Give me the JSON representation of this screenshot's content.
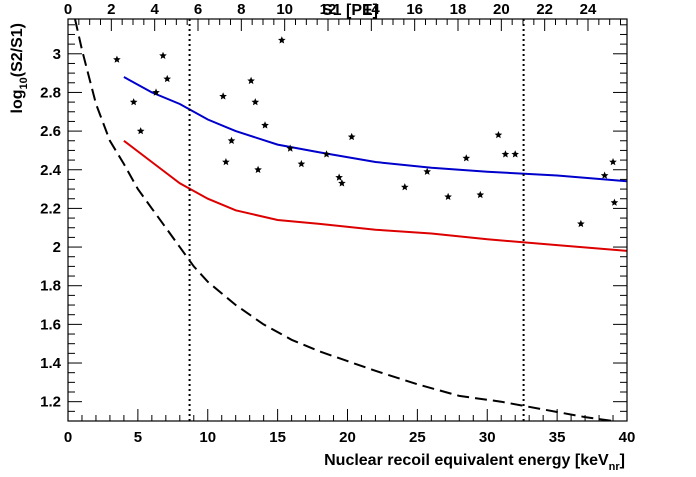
{
  "chart_data": {
    "type": "scatter",
    "x_bottom": {
      "label_main": "Nuclear recoil equivalent energy [keV",
      "label_sub": "nr",
      "label_end": "]",
      "range": [
        0,
        40
      ],
      "ticks": [
        0,
        5,
        10,
        15,
        20,
        25,
        30,
        35,
        40
      ]
    },
    "x_top": {
      "label": "S1 [PE]",
      "range": [
        0,
        25.8
      ],
      "ticks": [
        0,
        2,
        4,
        6,
        8,
        10,
        12,
        14,
        16,
        18,
        20,
        22,
        24
      ]
    },
    "y": {
      "label_pre": "log",
      "label_sub": "10",
      "label_post": "(S2/S1)",
      "range": [
        1.1,
        3.18
      ],
      "ticks": [
        1.2,
        1.4,
        1.6,
        1.8,
        2,
        2.2,
        2.4,
        2.6,
        2.8,
        3
      ]
    },
    "events": [
      [
        3.5,
        2.97
      ],
      [
        4.7,
        2.75
      ],
      [
        5.2,
        2.6
      ],
      [
        6.3,
        2.8
      ],
      [
        6.8,
        2.99
      ],
      [
        7.1,
        2.87
      ],
      [
        11.1,
        2.78
      ],
      [
        11.3,
        2.44
      ],
      [
        11.7,
        2.55
      ],
      [
        13.1,
        2.86
      ],
      [
        13.4,
        2.75
      ],
      [
        13.6,
        2.4
      ],
      [
        14.1,
        2.63
      ],
      [
        15.3,
        3.07
      ],
      [
        15.9,
        2.51
      ],
      [
        16.7,
        2.43
      ],
      [
        18.5,
        2.48
      ],
      [
        19.4,
        2.36
      ],
      [
        19.6,
        2.33
      ],
      [
        20.3,
        2.57
      ],
      [
        24.1,
        2.31
      ],
      [
        25.7,
        2.39
      ],
      [
        27.2,
        2.26
      ],
      [
        28.5,
        2.46
      ],
      [
        29.5,
        2.27
      ],
      [
        30.8,
        2.58
      ],
      [
        31.3,
        2.48
      ],
      [
        32.0,
        2.48
      ],
      [
        36.7,
        2.12
      ],
      [
        38.4,
        2.37
      ],
      [
        39.0,
        2.44
      ],
      [
        39.1,
        2.23
      ]
    ],
    "curves": [
      {
        "color": "#0000cc",
        "style": "solid",
        "points": [
          [
            4.0,
            2.88
          ],
          [
            6.0,
            2.8
          ],
          [
            8.0,
            2.74
          ],
          [
            10.0,
            2.66
          ],
          [
            12.0,
            2.6
          ],
          [
            15.0,
            2.53
          ],
          [
            18.0,
            2.49
          ],
          [
            22.0,
            2.44
          ],
          [
            26.0,
            2.41
          ],
          [
            30.0,
            2.39
          ],
          [
            35.0,
            2.37
          ],
          [
            40.0,
            2.34
          ]
        ]
      },
      {
        "color": "#dd0000",
        "style": "solid",
        "points": [
          [
            4.0,
            2.55
          ],
          [
            6.0,
            2.44
          ],
          [
            8.0,
            2.33
          ],
          [
            10.0,
            2.25
          ],
          [
            12.0,
            2.19
          ],
          [
            15.0,
            2.14
          ],
          [
            18.0,
            2.12
          ],
          [
            22.0,
            2.09
          ],
          [
            26.0,
            2.07
          ],
          [
            30.0,
            2.04
          ],
          [
            35.0,
            2.01
          ],
          [
            40.0,
            1.98
          ]
        ]
      },
      {
        "color": "#000000",
        "style": "dashed",
        "points": [
          [
            0.5,
            3.18
          ],
          [
            1.0,
            3.02
          ],
          [
            1.5,
            2.88
          ],
          [
            2.0,
            2.74
          ],
          [
            3.0,
            2.55
          ],
          [
            4.0,
            2.43
          ],
          [
            5.0,
            2.3
          ],
          [
            6.0,
            2.2
          ],
          [
            7.0,
            2.1
          ],
          [
            8.0,
            2.0
          ],
          [
            9.0,
            1.9
          ],
          [
            10.0,
            1.82
          ],
          [
            12.0,
            1.7
          ],
          [
            14.0,
            1.6
          ],
          [
            16.0,
            1.52
          ],
          [
            18.0,
            1.46
          ],
          [
            20.0,
            1.41
          ],
          [
            22.0,
            1.36
          ],
          [
            25.0,
            1.29
          ],
          [
            28.0,
            1.23
          ],
          [
            31.0,
            1.2
          ],
          [
            34.0,
            1.16
          ],
          [
            37.0,
            1.12
          ],
          [
            39.0,
            1.1
          ]
        ]
      }
    ],
    "vlines_x": [
      8.7,
      32.6
    ],
    "grid": false,
    "legend": "none"
  }
}
